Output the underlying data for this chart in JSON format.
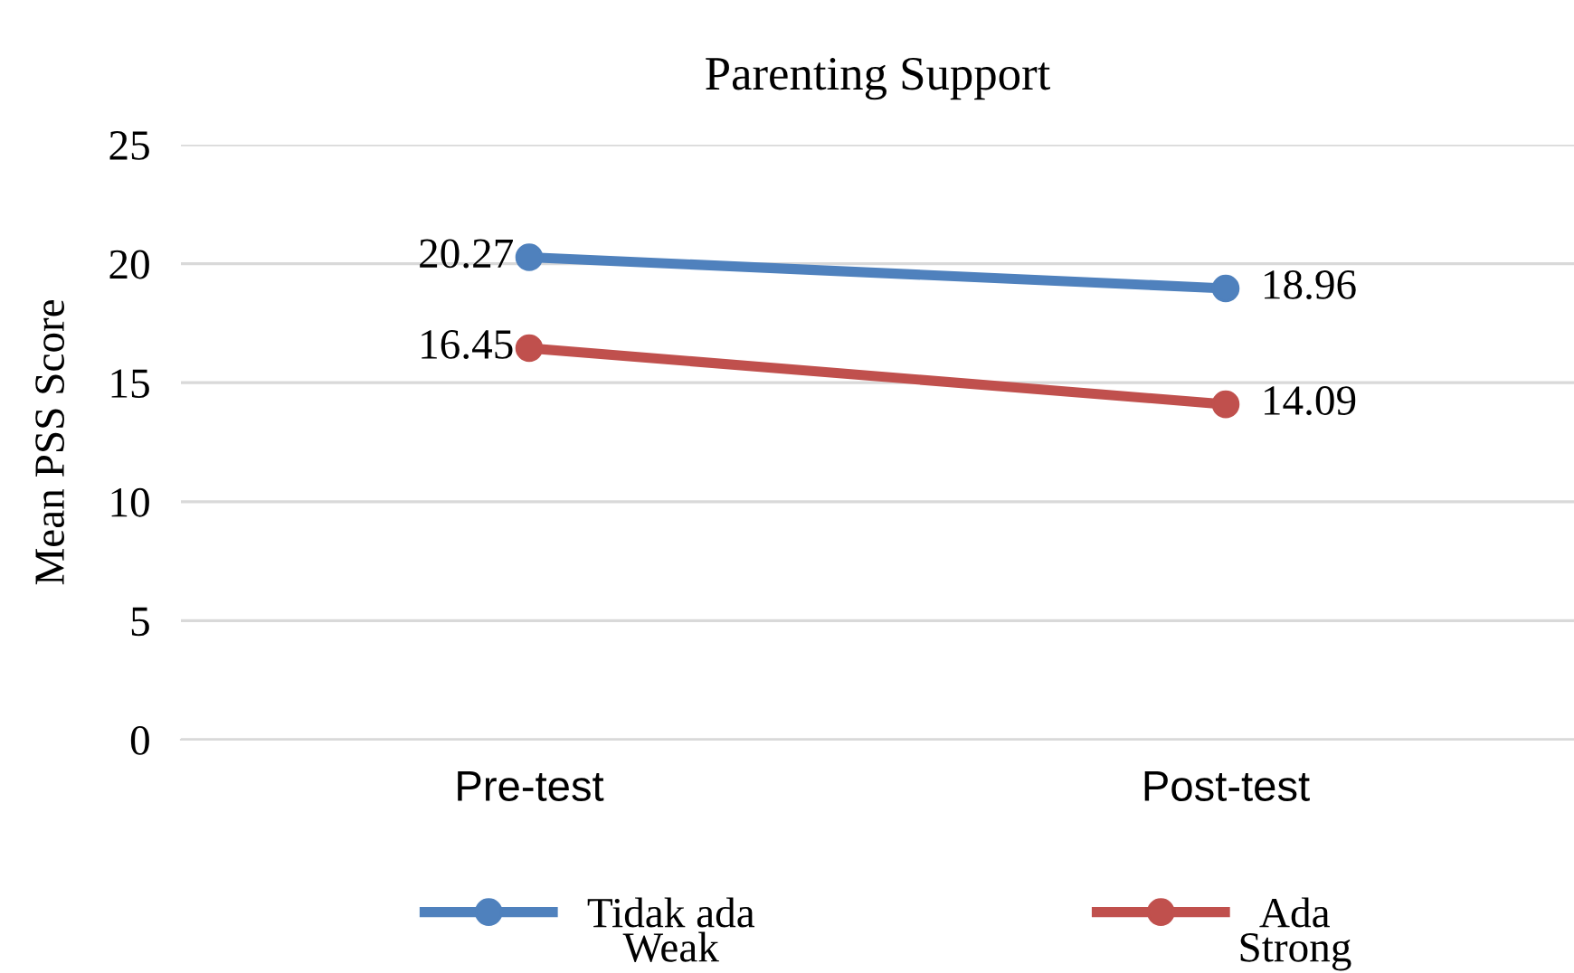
{
  "chart_data": {
    "type": "line",
    "title": "Parenting Support",
    "ylabel": "Mean PSS Score",
    "categories": [
      "Pre-test",
      "Post-test"
    ],
    "series": [
      {
        "name": "Tidak ada",
        "color": "#4f81bd",
        "values": [
          20.27,
          18.96
        ]
      },
      {
        "name": "Ada",
        "color": "#c0504d",
        "values": [
          16.45,
          14.09
        ]
      }
    ],
    "ylim": [
      0,
      25
    ],
    "yticks": [
      0,
      5,
      10,
      15,
      20,
      25
    ],
    "grid": "y",
    "legend": "bottom",
    "marker": "circle",
    "line_style": "solid",
    "data_labels": true,
    "annotations": [
      "Weak",
      "Strong"
    ]
  }
}
